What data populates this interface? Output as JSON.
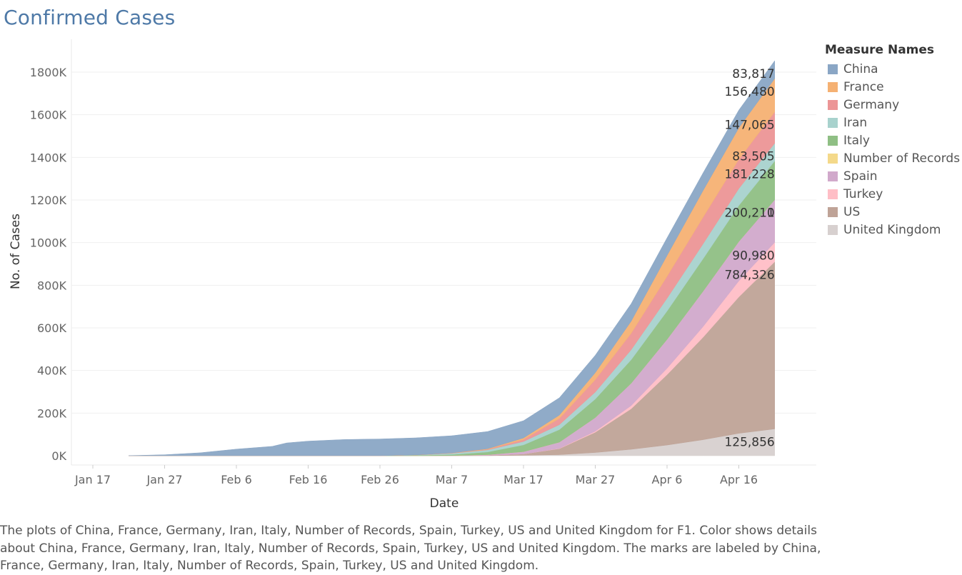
{
  "title": "Confirmed Cases",
  "caption": "The plots of China, France, Germany, Iran, Italy, Number of Records, Spain, Turkey, US and United Kingdom for F1.  Color shows details about China, France, Germany, Iran, Italy, Number of Records, Spain, Turkey, US and United Kingdom.  The marks are labeled by China, France, Germany, Iran, Italy, Number of Records, Spain, Turkey, US and United Kingdom.",
  "chart_data": {
    "type": "area",
    "stacked": true,
    "xlabel": "Date",
    "ylabel": "No. of Cases",
    "legend_title": "Measure Names",
    "legend_position": "right",
    "grid": true,
    "x": [
      "Jan 22",
      "Jan 27",
      "Feb 1",
      "Feb 6",
      "Feb 11",
      "Feb 13",
      "Feb 16",
      "Feb 21",
      "Feb 26",
      "Mar 2",
      "Mar 7",
      "Mar 12",
      "Mar 17",
      "Mar 22",
      "Mar 27",
      "Apr 1",
      "Apr 6",
      "Apr 11",
      "Apr 16",
      "Apr 21"
    ],
    "x_ticks": [
      "Jan 17",
      "Jan 27",
      "Feb 6",
      "Feb 16",
      "Feb 26",
      "Mar 7",
      "Mar 17",
      "Mar 27",
      "Apr 6",
      "Apr 16"
    ],
    "y_ticks": [
      "0K",
      "200K",
      "400K",
      "600K",
      "800K",
      "1000K",
      "1200K",
      "1400K",
      "1600K",
      "1800K"
    ],
    "ylim": [
      0,
      1800000
    ],
    "series": [
      {
        "name": "United Kingdom",
        "color": "#d7d0cf",
        "values": [
          0,
          0,
          0,
          0,
          0,
          0,
          0,
          0,
          0,
          0,
          0,
          400,
          2000,
          5000,
          15000,
          30000,
          50000,
          75000,
          105000,
          125856
        ],
        "label": "125,856"
      },
      {
        "name": "US",
        "color": "#bfa397",
        "values": [
          0,
          0,
          0,
          0,
          0,
          0,
          0,
          0,
          0,
          0,
          300,
          1500,
          6000,
          28000,
          95000,
          190000,
          330000,
          480000,
          640000,
          784326
        ],
        "label": "784,326"
      },
      {
        "name": "Turkey",
        "color": "#ffbec6",
        "values": [
          0,
          0,
          0,
          0,
          0,
          0,
          0,
          0,
          0,
          0,
          0,
          0,
          50,
          1500,
          5000,
          15000,
          30000,
          50000,
          75000,
          90980
        ],
        "label": "90,980"
      },
      {
        "name": "Spain",
        "color": "#d1a9cb",
        "values": [
          0,
          0,
          0,
          0,
          0,
          0,
          0,
          0,
          0,
          100,
          500,
          3000,
          11000,
          29000,
          64000,
          105000,
          136000,
          166000,
          185000,
          200210
        ],
        "label": "200,210"
      },
      {
        "name": "Number of Records",
        "color": "#f4d98a",
        "values": [
          0,
          0,
          0,
          0,
          0,
          0,
          0,
          0,
          0,
          0,
          0,
          0,
          0,
          0,
          0,
          0,
          0,
          0,
          0,
          1
        ],
        "label": "1"
      },
      {
        "name": "Italy",
        "color": "#8fbf84",
        "values": [
          0,
          0,
          0,
          0,
          0,
          0,
          0,
          0,
          0,
          1700,
          4600,
          12500,
          31500,
          59000,
          86500,
          110000,
          132500,
          152000,
          168900,
          181228
        ],
        "label": "181,228"
      },
      {
        "name": "Iran",
        "color": "#a8d2cd",
        "values": [
          0,
          0,
          0,
          0,
          0,
          0,
          0,
          0,
          20,
          1500,
          5800,
          10000,
          16000,
          23000,
          33000,
          47000,
          60000,
          70000,
          79500,
          83505
        ],
        "label": "83,505"
      },
      {
        "name": "Germany",
        "color": "#ec9596",
        "values": [
          0,
          0,
          0,
          0,
          0,
          0,
          0,
          0,
          20,
          150,
          800,
          2300,
          9000,
          29000,
          58000,
          77000,
          103000,
          125000,
          137000,
          147065
        ],
        "label": "147,065"
      },
      {
        "name": "France",
        "color": "#f5b173",
        "values": [
          0,
          0,
          0,
          0,
          0,
          0,
          0,
          10,
          20,
          200,
          900,
          2900,
          7600,
          16000,
          33000,
          57000,
          98000,
          125000,
          148000,
          156480
        ],
        "label": "156,480"
      },
      {
        "name": "China",
        "color": "#8aa6c5",
        "values": [
          548,
          4500,
          14000,
          31000,
          44000,
          60000,
          68500,
          76000,
          78500,
          80200,
          80800,
          80900,
          81100,
          81400,
          81900,
          82300,
          82700,
          83000,
          83400,
          83817
        ],
        "label": "83,817"
      }
    ],
    "legend_order": [
      "China",
      "France",
      "Germany",
      "Iran",
      "Italy",
      "Number of Records",
      "Spain",
      "Turkey",
      "US",
      "United Kingdom"
    ]
  }
}
